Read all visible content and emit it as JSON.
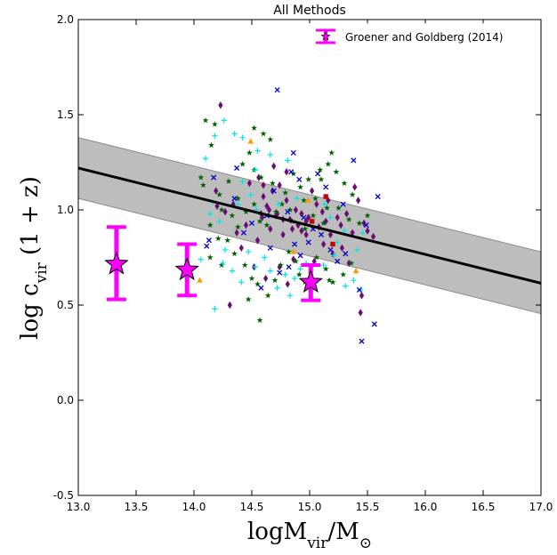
{
  "chart_data": {
    "type": "scatter",
    "title": "All Methods",
    "xlabel": "logM",
    "xlabel_sub": "vir",
    "xlabel_mid": "/M",
    "xlabel_sub2": "⊙",
    "ylabel": "log c",
    "ylabel_sub": "vir",
    "ylabel_tail": " (1 + z)",
    "xlim": [
      13.0,
      17.0
    ],
    "ylim": [
      -0.5,
      2.0
    ],
    "xticks": [
      "13.0",
      "13.5",
      "14.0",
      "14.5",
      "15.0",
      "15.5",
      "16.0",
      "16.5",
      "17.0"
    ],
    "yticks": [
      "2.0",
      "1.5",
      "1.0",
      "0.5",
      "0.0",
      "-0.5"
    ],
    "grid": false,
    "legend_position": "top-right",
    "legend": [
      {
        "label": "Groener and Goldberg (2014)",
        "color": "#ff00ff"
      }
    ],
    "relation": {
      "x": [
        13.0,
        17.0
      ],
      "y": [
        1.22,
        0.615
      ],
      "band_upper": [
        1.38,
        0.78
      ],
      "band_lower": [
        1.06,
        0.455
      ],
      "line_color": "#000000",
      "band_color": "#bdbdbd"
    },
    "highlighted": {
      "color": "#ff00ff",
      "points": [
        {
          "x": 13.33,
          "y": 0.715,
          "ylow": 0.53,
          "yhigh": 0.91
        },
        {
          "x": 13.94,
          "y": 0.685,
          "ylow": 0.55,
          "yhigh": 0.82
        },
        {
          "x": 15.01,
          "y": 0.62,
          "ylow": 0.525,
          "yhigh": 0.71
        }
      ]
    },
    "scatter_series": [
      {
        "marker": "diamond",
        "color": "#6a0d75",
        "points": [
          [
            14.23,
            1.55
          ],
          [
            14.74,
            1.13
          ],
          [
            14.56,
            1.17
          ],
          [
            14.6,
            1.07
          ],
          [
            14.63,
            1.02
          ],
          [
            14.69,
            1.23
          ],
          [
            14.8,
            1.05
          ],
          [
            14.72,
            0.98
          ],
          [
            14.77,
            0.95
          ],
          [
            14.85,
            0.9
          ],
          [
            14.59,
            0.96
          ],
          [
            14.88,
            1.0
          ],
          [
            14.97,
            0.94
          ],
          [
            15.02,
            1.1
          ],
          [
            15.08,
            0.91
          ],
          [
            15.11,
            0.99
          ],
          [
            15.18,
            0.87
          ],
          [
            15.27,
            0.92
          ],
          [
            15.32,
            0.98
          ],
          [
            15.39,
            1.12
          ],
          [
            15.42,
            1.05
          ],
          [
            15.47,
            0.93
          ],
          [
            15.5,
            0.89
          ],
          [
            15.55,
            0.86
          ],
          [
            14.55,
            0.84
          ],
          [
            14.37,
            0.88
          ],
          [
            14.41,
            0.8
          ],
          [
            14.52,
            0.7
          ],
          [
            14.62,
            0.64
          ],
          [
            14.74,
            0.7
          ],
          [
            14.81,
            0.61
          ],
          [
            14.86,
            0.74
          ],
          [
            14.97,
            0.87
          ],
          [
            15.04,
            0.73
          ],
          [
            15.12,
            0.82
          ],
          [
            15.2,
            0.77
          ],
          [
            15.34,
            0.72
          ],
          [
            15.45,
            0.55
          ],
          [
            15.44,
            0.46
          ],
          [
            14.2,
            1.02
          ],
          [
            14.27,
            0.99
          ],
          [
            14.19,
            1.1
          ],
          [
            14.34,
            1.03
          ],
          [
            14.48,
            1.14
          ],
          [
            14.6,
            1.13
          ],
          [
            14.68,
            1.1
          ],
          [
            14.8,
            1.2
          ],
          [
            14.93,
            0.98
          ],
          [
            14.99,
            0.96
          ],
          [
            15.06,
            1.03
          ],
          [
            15.16,
            1.05
          ],
          [
            15.24,
            0.96
          ],
          [
            14.31,
            0.5
          ],
          [
            14.45,
            0.92
          ],
          [
            14.58,
            0.98
          ],
          [
            14.65,
            1.0
          ],
          [
            14.71,
            0.97
          ],
          [
            14.83,
            0.95
          ],
          [
            14.9,
            0.92
          ],
          [
            14.93,
            0.89
          ],
          [
            14.66,
            0.9
          ],
          [
            14.77,
            0.87
          ],
          [
            15.14,
            0.94
          ],
          [
            15.28,
            0.8
          ],
          [
            15.37,
            0.88
          ]
        ]
      },
      {
        "marker": "star",
        "color": "#006400",
        "points": [
          [
            14.1,
            1.47
          ],
          [
            14.18,
            1.45
          ],
          [
            14.15,
            1.34
          ],
          [
            14.52,
            1.43
          ],
          [
            14.6,
            1.4
          ],
          [
            14.66,
            1.37
          ],
          [
            14.48,
            1.3
          ],
          [
            14.42,
            1.24
          ],
          [
            14.52,
            1.21
          ],
          [
            14.58,
            1.17
          ],
          [
            14.3,
            1.15
          ],
          [
            14.22,
            1.08
          ],
          [
            14.24,
            1.0
          ],
          [
            14.33,
            0.97
          ],
          [
            14.38,
            0.91
          ],
          [
            14.45,
            0.99
          ],
          [
            14.52,
            1.03
          ],
          [
            14.57,
            0.94
          ],
          [
            14.63,
            0.92
          ],
          [
            14.71,
            0.99
          ],
          [
            14.76,
            1.03
          ],
          [
            14.83,
            1.0
          ],
          [
            14.92,
            1.12
          ],
          [
            14.95,
            1.05
          ],
          [
            15.05,
            1.06
          ],
          [
            15.1,
            1.16
          ],
          [
            15.16,
            1.24
          ],
          [
            15.19,
            1.3
          ],
          [
            15.23,
            1.2
          ],
          [
            15.3,
            1.14
          ],
          [
            15.37,
            1.08
          ],
          [
            14.85,
            0.94
          ],
          [
            14.96,
            0.9
          ],
          [
            15.03,
            0.97
          ],
          [
            15.12,
            0.93
          ],
          [
            15.25,
            1.01
          ],
          [
            15.34,
            0.95
          ],
          [
            15.43,
            0.93
          ],
          [
            15.5,
            0.97
          ],
          [
            14.14,
            0.92
          ],
          [
            14.21,
            0.85
          ],
          [
            14.14,
            0.75
          ],
          [
            14.24,
            0.71
          ],
          [
            14.29,
            0.84
          ],
          [
            14.35,
            0.77
          ],
          [
            14.44,
            0.71
          ],
          [
            14.5,
            0.64
          ],
          [
            14.55,
            0.61
          ],
          [
            14.47,
            0.53
          ],
          [
            14.57,
            0.42
          ],
          [
            14.64,
            0.55
          ],
          [
            14.7,
            0.63
          ],
          [
            14.75,
            0.71
          ],
          [
            14.82,
            0.78
          ],
          [
            14.88,
            0.73
          ],
          [
            14.91,
            0.66
          ],
          [
            14.96,
            0.62
          ],
          [
            15.06,
            0.75
          ],
          [
            15.14,
            0.69
          ],
          [
            15.17,
            0.63
          ],
          [
            15.2,
            0.62
          ],
          [
            15.29,
            0.66
          ],
          [
            15.36,
            0.72
          ],
          [
            14.38,
            1.06
          ],
          [
            14.68,
            1.14
          ],
          [
            14.79,
            1.09
          ],
          [
            14.86,
            1.19
          ],
          [
            14.99,
            1.16
          ],
          [
            15.09,
            1.21
          ],
          [
            15.15,
            1.01
          ],
          [
            14.06,
            1.17
          ],
          [
            14.08,
            1.13
          ]
        ]
      },
      {
        "marker": "plus",
        "color": "#00e5e5",
        "points": [
          [
            14.26,
            1.47
          ],
          [
            14.18,
            1.39
          ],
          [
            14.42,
            1.38
          ],
          [
            14.35,
            1.4
          ],
          [
            14.55,
            1.31
          ],
          [
            14.66,
            1.29
          ],
          [
            14.81,
            1.26
          ],
          [
            14.14,
            0.98
          ],
          [
            14.22,
            0.94
          ],
          [
            14.27,
            0.79
          ],
          [
            14.06,
            0.74
          ],
          [
            14.18,
            0.48
          ],
          [
            14.25,
            0.72
          ],
          [
            14.33,
            0.68
          ],
          [
            14.41,
            0.62
          ],
          [
            14.47,
            0.78
          ],
          [
            14.53,
            0.7
          ],
          [
            14.61,
            0.75
          ],
          [
            14.66,
            0.68
          ],
          [
            14.72,
            0.59
          ],
          [
            14.79,
            0.66
          ],
          [
            14.83,
            0.55
          ],
          [
            14.87,
            0.64
          ],
          [
            14.92,
            0.69
          ],
          [
            14.97,
            0.72
          ],
          [
            15.02,
            0.58
          ],
          [
            15.07,
            0.63
          ],
          [
            15.12,
            0.71
          ],
          [
            15.21,
            0.76
          ],
          [
            15.31,
            0.6
          ],
          [
            15.38,
            0.63
          ],
          [
            15.44,
            0.58
          ],
          [
            15.46,
            0.88
          ],
          [
            15.41,
            0.79
          ],
          [
            14.42,
            1.15
          ],
          [
            14.49,
            1.08
          ],
          [
            14.38,
            1.03
          ],
          [
            14.54,
            1.0
          ],
          [
            14.73,
            1.03
          ],
          [
            14.89,
            1.06
          ],
          [
            15.13,
            1.03
          ],
          [
            15.18,
            0.96
          ],
          [
            15.24,
            0.83
          ],
          [
            15.3,
            0.89
          ],
          [
            14.1,
            1.27
          ],
          [
            14.53,
            1.21
          ],
          [
            14.16,
            1.04
          ]
        ]
      },
      {
        "marker": "x",
        "color": "#0000cc",
        "points": [
          [
            14.72,
            1.63
          ],
          [
            14.86,
            1.3
          ],
          [
            14.37,
            1.22
          ],
          [
            14.17,
            1.17
          ],
          [
            14.35,
            1.06
          ],
          [
            14.69,
            1.1
          ],
          [
            14.84,
            1.2
          ],
          [
            14.91,
            1.16
          ],
          [
            15.07,
            1.19
          ],
          [
            15.14,
            1.12
          ],
          [
            15.29,
            1.03
          ],
          [
            15.38,
            1.26
          ],
          [
            15.59,
            1.07
          ],
          [
            15.49,
            0.92
          ],
          [
            15.31,
            0.77
          ],
          [
            15.24,
            0.73
          ],
          [
            15.18,
            0.79
          ],
          [
            14.95,
            0.96
          ],
          [
            14.81,
            0.99
          ],
          [
            14.63,
            0.97
          ],
          [
            14.5,
            0.93
          ],
          [
            14.43,
            0.88
          ],
          [
            14.13,
            0.84
          ],
          [
            14.11,
            0.81
          ],
          [
            14.66,
            0.8
          ],
          [
            14.87,
            0.82
          ],
          [
            14.99,
            0.83
          ],
          [
            15.03,
            0.9
          ],
          [
            15.1,
            0.87
          ],
          [
            15.43,
            0.58
          ],
          [
            15.56,
            0.4
          ],
          [
            15.45,
            0.31
          ],
          [
            14.58,
            0.59
          ],
          [
            14.74,
            0.67
          ],
          [
            14.82,
            0.7
          ],
          [
            14.92,
            0.76
          ]
        ]
      },
      {
        "marker": "triangle",
        "color": "#ff9900",
        "points": [
          [
            14.49,
            1.36
          ],
          [
            14.05,
            0.63
          ],
          [
            14.86,
            0.78
          ],
          [
            14.99,
            1.05
          ],
          [
            15.4,
            0.68
          ]
        ]
      },
      {
        "marker": "square",
        "color": "#cc0000",
        "points": [
          [
            15.14,
            1.07
          ],
          [
            15.2,
            0.82
          ],
          [
            15.02,
            0.94
          ]
        ]
      }
    ]
  }
}
